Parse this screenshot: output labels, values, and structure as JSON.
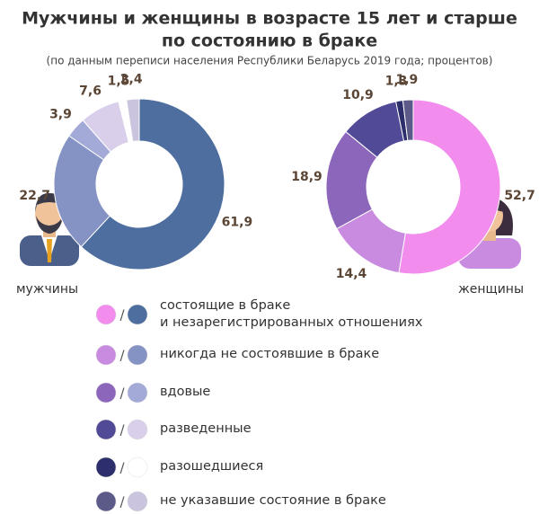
{
  "chart_data": {
    "type": "pie",
    "title": "Мужчины и женщины в возрасте 15 лет и старше",
    "title_line2": "по состоянию в браке",
    "subtitle": "(по данным переписи населения Республики Беларусь 2019 года; процентов)",
    "categories": [
      "состоящие в браке\nи незарегистрированных отношениях",
      "никогда не состоявшие в браке",
      "вдовые",
      "разведенные",
      "разошедшиеся",
      "не указавшие состояние в браке"
    ],
    "legend_separator": "/",
    "series": [
      {
        "name": "мужчины",
        "colors": [
          "#4e6e9f",
          "#8592c4",
          "#a4aad7",
          "#d9cfea",
          "#ffffff",
          "#cbc4df"
        ],
        "values": [
          61.9,
          22.7,
          3.9,
          7.6,
          1.5,
          2.4
        ],
        "value_labels": [
          "61,9",
          "22,7",
          "3,9",
          "7,6",
          "1,5",
          "2,4"
        ]
      },
      {
        "name": "женщины",
        "colors": [
          "#f28ded",
          "#c98be0",
          "#8c66ba",
          "#514a96",
          "#2c2f6b",
          "#5b5a88"
        ],
        "values": [
          52.7,
          14.4,
          18.9,
          10.9,
          1.3,
          1.9
        ],
        "value_labels": [
          "52,7",
          "14,4",
          "18,9",
          "10,9",
          "1,3",
          "1,9"
        ]
      }
    ]
  }
}
